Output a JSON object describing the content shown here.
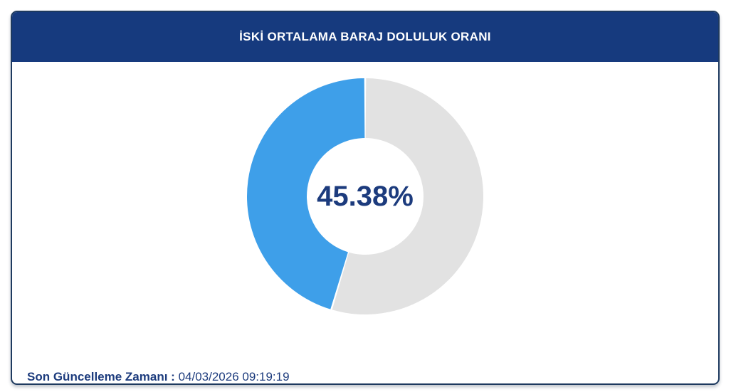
{
  "card": {
    "title": "İSKİ ORTALAMA BARAJ DOLULUK ORANI"
  },
  "chart_data": {
    "type": "pie",
    "variant": "donut",
    "title": "İSKİ ORTALAMA BARAJ DOLULUK ORANI",
    "center_label": "45.38%",
    "value_percent": 45.38,
    "segments": [
      {
        "value": 45.38,
        "color": "#3E9FE9"
      },
      {
        "value": 54.62,
        "color": "#E2E2E2"
      }
    ],
    "start": "top",
    "direction": "counterclockwise",
    "inner_radius_ratio": 0.494,
    "segment_gap_deg": 0.9,
    "legend": false
  },
  "footer": {
    "label": "Son Güncelleme Zamanı",
    "separator": " : ",
    "timestamp": "04/03/2026 09:19:19"
  },
  "colors": {
    "header_bg": "#163A7E",
    "header_text": "#FFFFFF",
    "card_border": "#1E3A5F",
    "value_text": "#1C3B7D",
    "footer_text": "#1C3B7D",
    "fill": "#3E9FE9",
    "remainder": "#E2E2E2",
    "background": "#FFFFFF"
  }
}
